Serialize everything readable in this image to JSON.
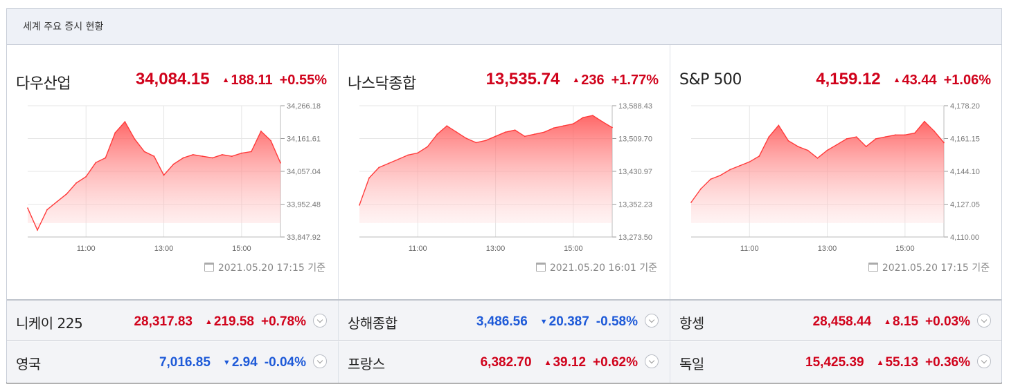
{
  "header": {
    "title": "세계 주요 증시 현황"
  },
  "colors": {
    "up": "#d0021b",
    "down": "#1e5ad8",
    "line": "#ff3b3b"
  },
  "panels": [
    {
      "name": "다우산업",
      "value": "34,084.15",
      "arrow": "▲",
      "change": "188.11",
      "pct": "+0.55%",
      "timestamp": "2021.05.20 17:15 기준"
    },
    {
      "name": "나스닥종합",
      "value": "13,535.74",
      "arrow": "▲",
      "change": "236",
      "pct": "+1.77%",
      "timestamp": "2021.05.20 16:01 기준"
    },
    {
      "name": "S&P 500",
      "value": "4,159.12",
      "arrow": "▲",
      "change": "43.44",
      "pct": "+1.06%",
      "timestamp": "2021.05.20 17:15 기준"
    }
  ],
  "rows": [
    [
      {
        "name": "니케이 225",
        "value": "28,317.83",
        "arrow": "▲",
        "change": "219.58",
        "pct": "+0.78%",
        "dir": "up"
      },
      {
        "name": "상해종합",
        "value": "3,486.56",
        "arrow": "▼",
        "change": "20.387",
        "pct": "-0.58%",
        "dir": "down"
      },
      {
        "name": "항셍",
        "value": "28,458.44",
        "arrow": "▲",
        "change": "8.15",
        "pct": "+0.03%",
        "dir": "up"
      }
    ],
    [
      {
        "name": "영국",
        "value": "7,016.85",
        "arrow": "▼",
        "change": "2.94",
        "pct": "-0.04%",
        "dir": "down"
      },
      {
        "name": "프랑스",
        "value": "6,382.70",
        "arrow": "▲",
        "change": "39.12",
        "pct": "+0.62%",
        "dir": "up"
      },
      {
        "name": "독일",
        "value": "15,425.39",
        "arrow": "▲",
        "change": "55.13",
        "pct": "+0.36%",
        "dir": "up"
      }
    ]
  ],
  "chart_data": [
    {
      "type": "area",
      "title": "다우산업",
      "xlabel": "",
      "ylabel": "",
      "x_ticks": [
        "11:00",
        "13:00",
        "15:00"
      ],
      "y_ticks": [
        "34,266.18",
        "34,161.61",
        "34,057.04",
        "33,952.48",
        "33,847.92"
      ],
      "ylim": [
        33847.92,
        34266.18
      ],
      "grid": true,
      "x": [
        "09:30",
        "09:45",
        "10:00",
        "10:15",
        "10:30",
        "10:45",
        "11:00",
        "11:15",
        "11:30",
        "11:45",
        "12:00",
        "12:15",
        "12:30",
        "12:45",
        "13:00",
        "13:15",
        "13:30",
        "13:45",
        "14:00",
        "14:15",
        "14:30",
        "14:45",
        "15:00",
        "15:15",
        "15:30",
        "15:45",
        "16:00"
      ],
      "values": [
        33940,
        33870,
        33935,
        33960,
        33985,
        34020,
        34040,
        34085,
        34100,
        34180,
        34215,
        34160,
        34120,
        34105,
        34045,
        34080,
        34100,
        34110,
        34105,
        34100,
        34110,
        34105,
        34115,
        34120,
        34185,
        34155,
        34084
      ]
    },
    {
      "type": "area",
      "title": "나스닥종합",
      "xlabel": "",
      "ylabel": "",
      "x_ticks": [
        "11:00",
        "13:00",
        "15:00"
      ],
      "y_ticks": [
        "13,588.43",
        "13,509.70",
        "13,430.97",
        "13,352.23",
        "13,273.50"
      ],
      "ylim": [
        13273.5,
        13588.43
      ],
      "grid": true,
      "x": [
        "09:30",
        "09:45",
        "10:00",
        "10:15",
        "10:30",
        "10:45",
        "11:00",
        "11:15",
        "11:30",
        "11:45",
        "12:00",
        "12:15",
        "12:30",
        "12:45",
        "13:00",
        "13:15",
        "13:30",
        "13:45",
        "14:00",
        "14:15",
        "14:30",
        "14:45",
        "15:00",
        "15:15",
        "15:30",
        "15:45",
        "16:00"
      ],
      "values": [
        13350,
        13415,
        13440,
        13450,
        13460,
        13470,
        13475,
        13490,
        13520,
        13540,
        13525,
        13510,
        13500,
        13505,
        13515,
        13525,
        13530,
        13515,
        13520,
        13525,
        13535,
        13540,
        13545,
        13560,
        13565,
        13550,
        13536
      ]
    },
    {
      "type": "area",
      "title": "S&P 500",
      "xlabel": "",
      "ylabel": "",
      "x_ticks": [
        "11:00",
        "13:00",
        "15:00"
      ],
      "y_ticks": [
        "4,178.20",
        "4,161.15",
        "4,144.10",
        "4,127.05",
        "4,110.00"
      ],
      "ylim": [
        4110.0,
        4178.2
      ],
      "grid": true,
      "x": [
        "09:30",
        "09:45",
        "10:00",
        "10:15",
        "10:30",
        "10:45",
        "11:00",
        "11:15",
        "11:30",
        "11:45",
        "12:00",
        "12:15",
        "12:30",
        "12:45",
        "13:00",
        "13:15",
        "13:30",
        "13:45",
        "14:00",
        "14:15",
        "14:30",
        "14:45",
        "15:00",
        "15:15",
        "15:30",
        "15:45",
        "16:00"
      ],
      "values": [
        4128,
        4135,
        4140,
        4142,
        4145,
        4147,
        4149,
        4152,
        4162,
        4168,
        4160,
        4157,
        4155,
        4151,
        4155,
        4158,
        4161,
        4162,
        4157,
        4161,
        4162,
        4163,
        4163,
        4164,
        4170,
        4165,
        4159
      ]
    }
  ]
}
